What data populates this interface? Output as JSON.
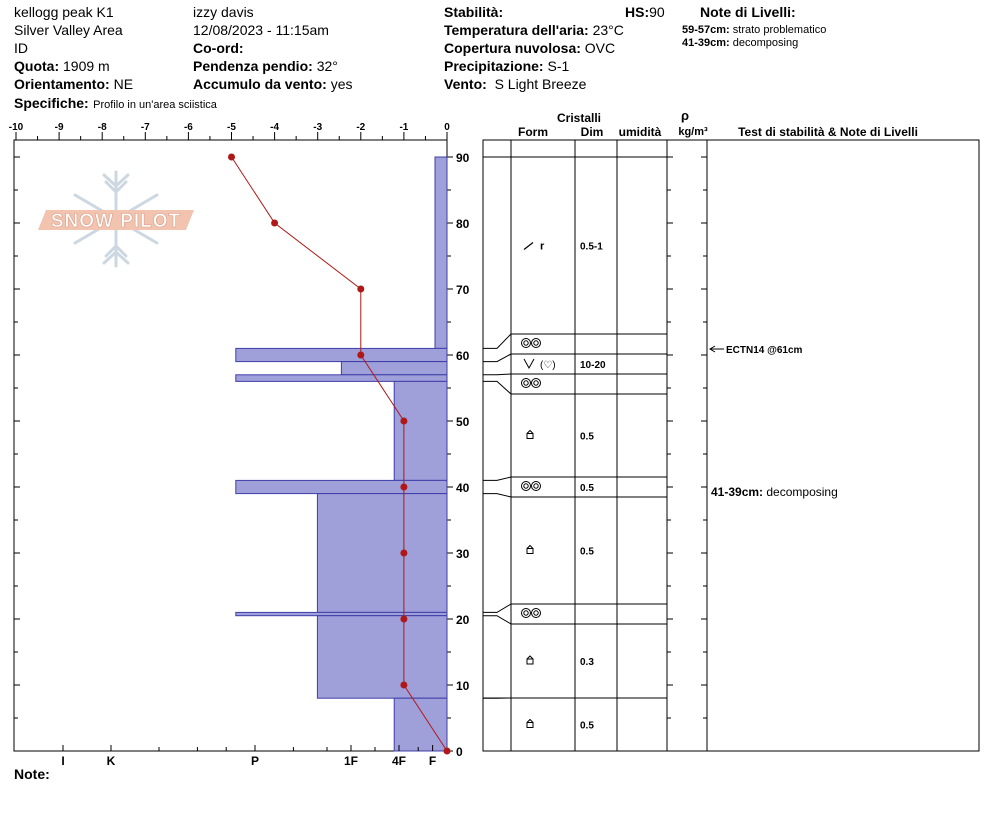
{
  "header": {
    "site": "kellogg peak K1",
    "area": "Silver Valley Area",
    "id_label": "ID",
    "quota_label": "Quota:",
    "quota_value": "1909 m",
    "orient_label": "Orientamento:",
    "orient_value": "NE",
    "specifiche_label": "Specifiche:",
    "specifiche_value": "Profilo in un'area sciistica",
    "observer": "izzy davis",
    "datetime": "12/08/2023 - 11:15am",
    "coord_label": "Co-ord:",
    "slope_label": "Pendenza pendio:",
    "slope_value": "32°",
    "wind_load_label": "Accumulo da vento:",
    "wind_load_value": "yes",
    "stability_label": "Stabilità:",
    "hs_label": "HS:",
    "hs_value": "90",
    "air_temp_label": "Temperatura dell'aria:",
    "air_temp_value": "23°C",
    "cloud_label": "Copertura nuvolosa:",
    "cloud_value": "OVC",
    "precip_label": "Precipitazione:",
    "precip_value": "S-1",
    "wind_label": "Vento:",
    "wind_value": "S Light Breeze",
    "layer_notes_title": "Note di Livelli:",
    "layer_notes": [
      {
        "range": "59-57cm:",
        "text": "strato problematico"
      },
      {
        "range": "41-39cm:",
        "text": "decomposing"
      }
    ]
  },
  "logo_text": "SNOW PILOT",
  "note_label": "Note:",
  "table_headers": {
    "cristalli": "Cristalli",
    "form": "Form",
    "dim": "Dim",
    "umidita": "umidità",
    "rho": "ρ",
    "density_unit": "kg/m³",
    "notes": "Test di stabilità & Note di Livelli"
  },
  "stability_tests": [
    {
      "label": "ECTN14 @61cm",
      "depth": 61
    }
  ],
  "layer_side_notes": [
    {
      "range": "41-39cm:",
      "text": "decomposing",
      "depth": 40
    }
  ],
  "chart_data": {
    "type": "snow_profile",
    "temperature_axis": {
      "min": -10,
      "max": 0,
      "ticks": [
        "-10",
        "-9",
        "-8",
        "-7",
        "-6",
        "-5",
        "-4",
        "-3",
        "-2",
        "-1",
        "0"
      ]
    },
    "height_axis": {
      "min": 0,
      "max": 90,
      "ticks": [
        "0",
        "10",
        "20",
        "30",
        "40",
        "50",
        "60",
        "70",
        "80",
        "90"
      ]
    },
    "hardness_labels": [
      "I",
      "K",
      "P",
      "1F",
      "4F",
      "F"
    ],
    "temperature_profile": [
      {
        "h": 90,
        "t": -5
      },
      {
        "h": 80,
        "t": -4
      },
      {
        "h": 70,
        "t": -2
      },
      {
        "h": 60,
        "t": -2
      },
      {
        "h": 50,
        "t": -1
      },
      {
        "h": 40,
        "t": -1
      },
      {
        "h": 30,
        "t": -1
      },
      {
        "h": 20,
        "t": -1
      },
      {
        "h": 10,
        "t": -1
      },
      {
        "h": 0,
        "t": 0
      }
    ],
    "hardness_profile": [
      {
        "bottom": 61,
        "top": 90,
        "hardness": 0.25
      },
      {
        "bottom": 59,
        "top": 61,
        "hardness": 4.4
      },
      {
        "bottom": 57,
        "top": 59,
        "hardness": 2.2
      },
      {
        "bottom": 56,
        "top": 57,
        "hardness": 4.4
      },
      {
        "bottom": 41,
        "top": 56,
        "hardness": 1.1
      },
      {
        "bottom": 39,
        "top": 41,
        "hardness": 4.4
      },
      {
        "bottom": 21,
        "top": 39,
        "hardness": 2.7
      },
      {
        "bottom": 20.5,
        "top": 21,
        "hardness": 4.4
      },
      {
        "bottom": 8,
        "top": 20.5,
        "hardness": 2.7
      },
      {
        "bottom": 0,
        "top": 8,
        "hardness": 1.1
      }
    ],
    "layers": [
      {
        "top": 90,
        "bottom": 63,
        "form": "precipitation-particles",
        "sub": "r",
        "dim": "0.5-1"
      },
      {
        "top": 63,
        "bottom": 60,
        "form": "melt-forms",
        "sub": "",
        "dim": ""
      },
      {
        "top": 60,
        "bottom": 57,
        "form": "surface-hoar",
        "sub": "(♡)",
        "dim": "10-20"
      },
      {
        "top": 57,
        "bottom": 54,
        "form": "melt-forms",
        "sub": "",
        "dim": ""
      },
      {
        "top": 54,
        "bottom": 41,
        "form": "faceted-crystals",
        "sub": "",
        "dim": "0.5"
      },
      {
        "top": 41,
        "bottom": 38,
        "form": "melt-forms",
        "sub": "",
        "dim": "0.5"
      },
      {
        "top": 38,
        "bottom": 22,
        "form": "faceted-crystals",
        "sub": "",
        "dim": "0.5"
      },
      {
        "top": 22,
        "bottom": 19,
        "form": "melt-forms",
        "sub": "",
        "dim": ""
      },
      {
        "top": 19,
        "bottom": 8,
        "form": "faceted-crystals",
        "sub": "",
        "dim": "0.3"
      },
      {
        "top": 8,
        "bottom": 0,
        "form": "faceted-crystals",
        "sub": "",
        "dim": "0.5"
      }
    ],
    "colors": {
      "hardness_fill": "#9f9fd9",
      "hardness_stroke": "#3f3faa",
      "temperature": "#b01818",
      "logo": "#f2c4b0"
    }
  }
}
